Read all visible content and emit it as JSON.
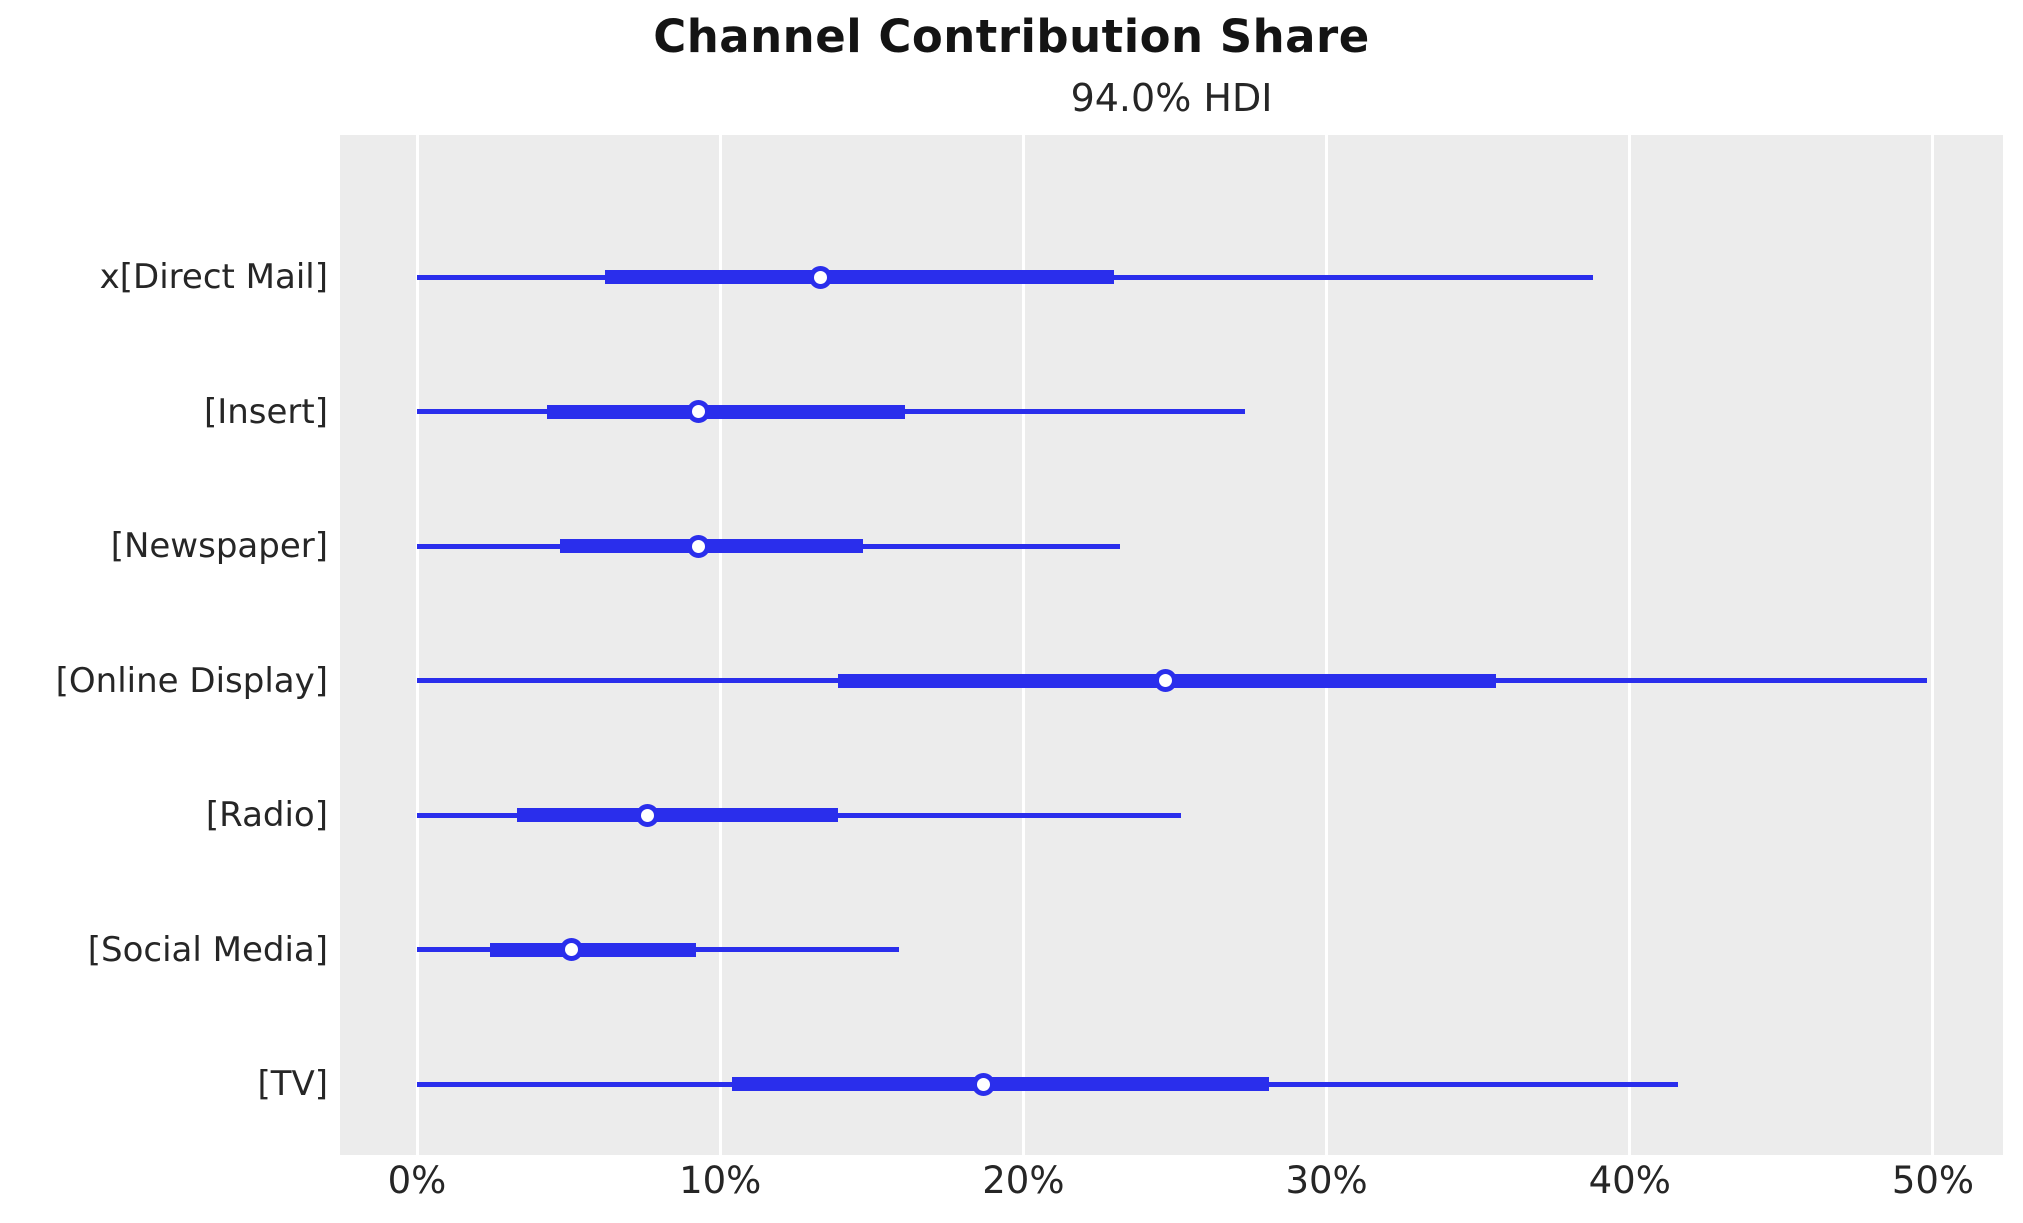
{
  "title": "Channel Contribution Share",
  "subtitle": "94.0% HDI",
  "colors": {
    "line": "#2a2eec",
    "plot_background": "#ececec",
    "gridline": "#ffffff",
    "text": "#262626",
    "title_text": "#141414",
    "marker_fill": "#ffffff"
  },
  "chart_data": {
    "type": "forest",
    "title": "Channel Contribution Share",
    "subtitle": "94.0% HDI",
    "hdi_probability": "94.0%",
    "orientation": "horizontal",
    "grid": "vertical white gridlines on gray panel",
    "legend_position": "none",
    "x_unit": "%",
    "x_tick_labels": [
      "0%",
      "10%",
      "20%",
      "30%",
      "40%",
      "50%"
    ],
    "x_tick_values": [
      0,
      10,
      20,
      30,
      40,
      50
    ],
    "xlim": [
      -2.54,
      52.31
    ],
    "rows": [
      {
        "label": "x[Direct Mail]",
        "hdi_low": 0,
        "hdi_high": 38.8,
        "quartile_low": 6.2,
        "quartile_high": 23.0,
        "median": 13.3
      },
      {
        "label": "[Insert]",
        "hdi_low": 0,
        "hdi_high": 27.3,
        "quartile_low": 4.3,
        "quartile_high": 16.1,
        "median": 9.3
      },
      {
        "label": "[Newspaper]",
        "hdi_low": 0,
        "hdi_high": 23.2,
        "quartile_low": 4.7,
        "quartile_high": 14.7,
        "median": 9.3
      },
      {
        "label": "[Online Display]",
        "hdi_low": 0,
        "hdi_high": 49.8,
        "quartile_low": 13.9,
        "quartile_high": 35.6,
        "median": 24.7
      },
      {
        "label": "[Radio]",
        "hdi_low": 0,
        "hdi_high": 25.2,
        "quartile_low": 3.3,
        "quartile_high": 13.9,
        "median": 7.6
      },
      {
        "label": "[Social Media]",
        "hdi_low": 0,
        "hdi_high": 15.9,
        "quartile_low": 2.4,
        "quartile_high": 9.2,
        "median": 5.1
      },
      {
        "label": "[TV]",
        "hdi_low": 0,
        "hdi_high": 41.6,
        "quartile_low": 10.4,
        "quartile_high": 28.1,
        "median": 18.7
      }
    ]
  }
}
